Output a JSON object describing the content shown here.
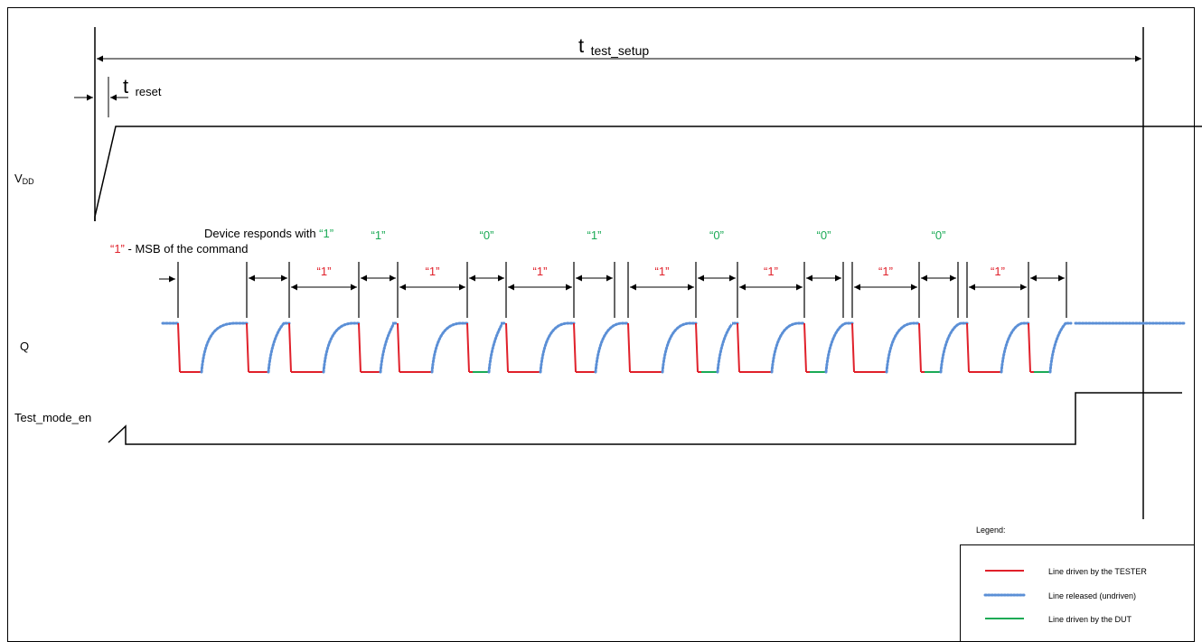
{
  "signals": {
    "vdd": "V",
    "vdd_sub": "DD",
    "q": "Q",
    "test_mode_en": "Test_mode_en"
  },
  "timing": {
    "t_setup_main": "t",
    "t_setup_sub": "test_setup",
    "t_reset_main": "t",
    "t_reset_sub": "reset"
  },
  "annotations": {
    "device_responds": "Device responds with ",
    "device_responds_value": "“1”",
    "msb_value": "“1”",
    "msb_text": " - MSB of the command"
  },
  "bits": {
    "tester": [
      "“1”",
      "“1”",
      "“1”",
      "“1”",
      "“1”",
      "“1”",
      "“1”"
    ],
    "device": [
      "“1”",
      "“1”",
      "“0”",
      "“1”",
      "“0”",
      "“0”",
      "“0”"
    ]
  },
  "legend": {
    "title": "Legend:",
    "tester": "Line driven by the TESTER",
    "released": "Line released (undriven)",
    "dut": "Line driven by the DUT"
  },
  "colors": {
    "tester": "#e0202a",
    "released": "#5b8fd6",
    "dut": "#1aaa55",
    "line": "#000000"
  }
}
